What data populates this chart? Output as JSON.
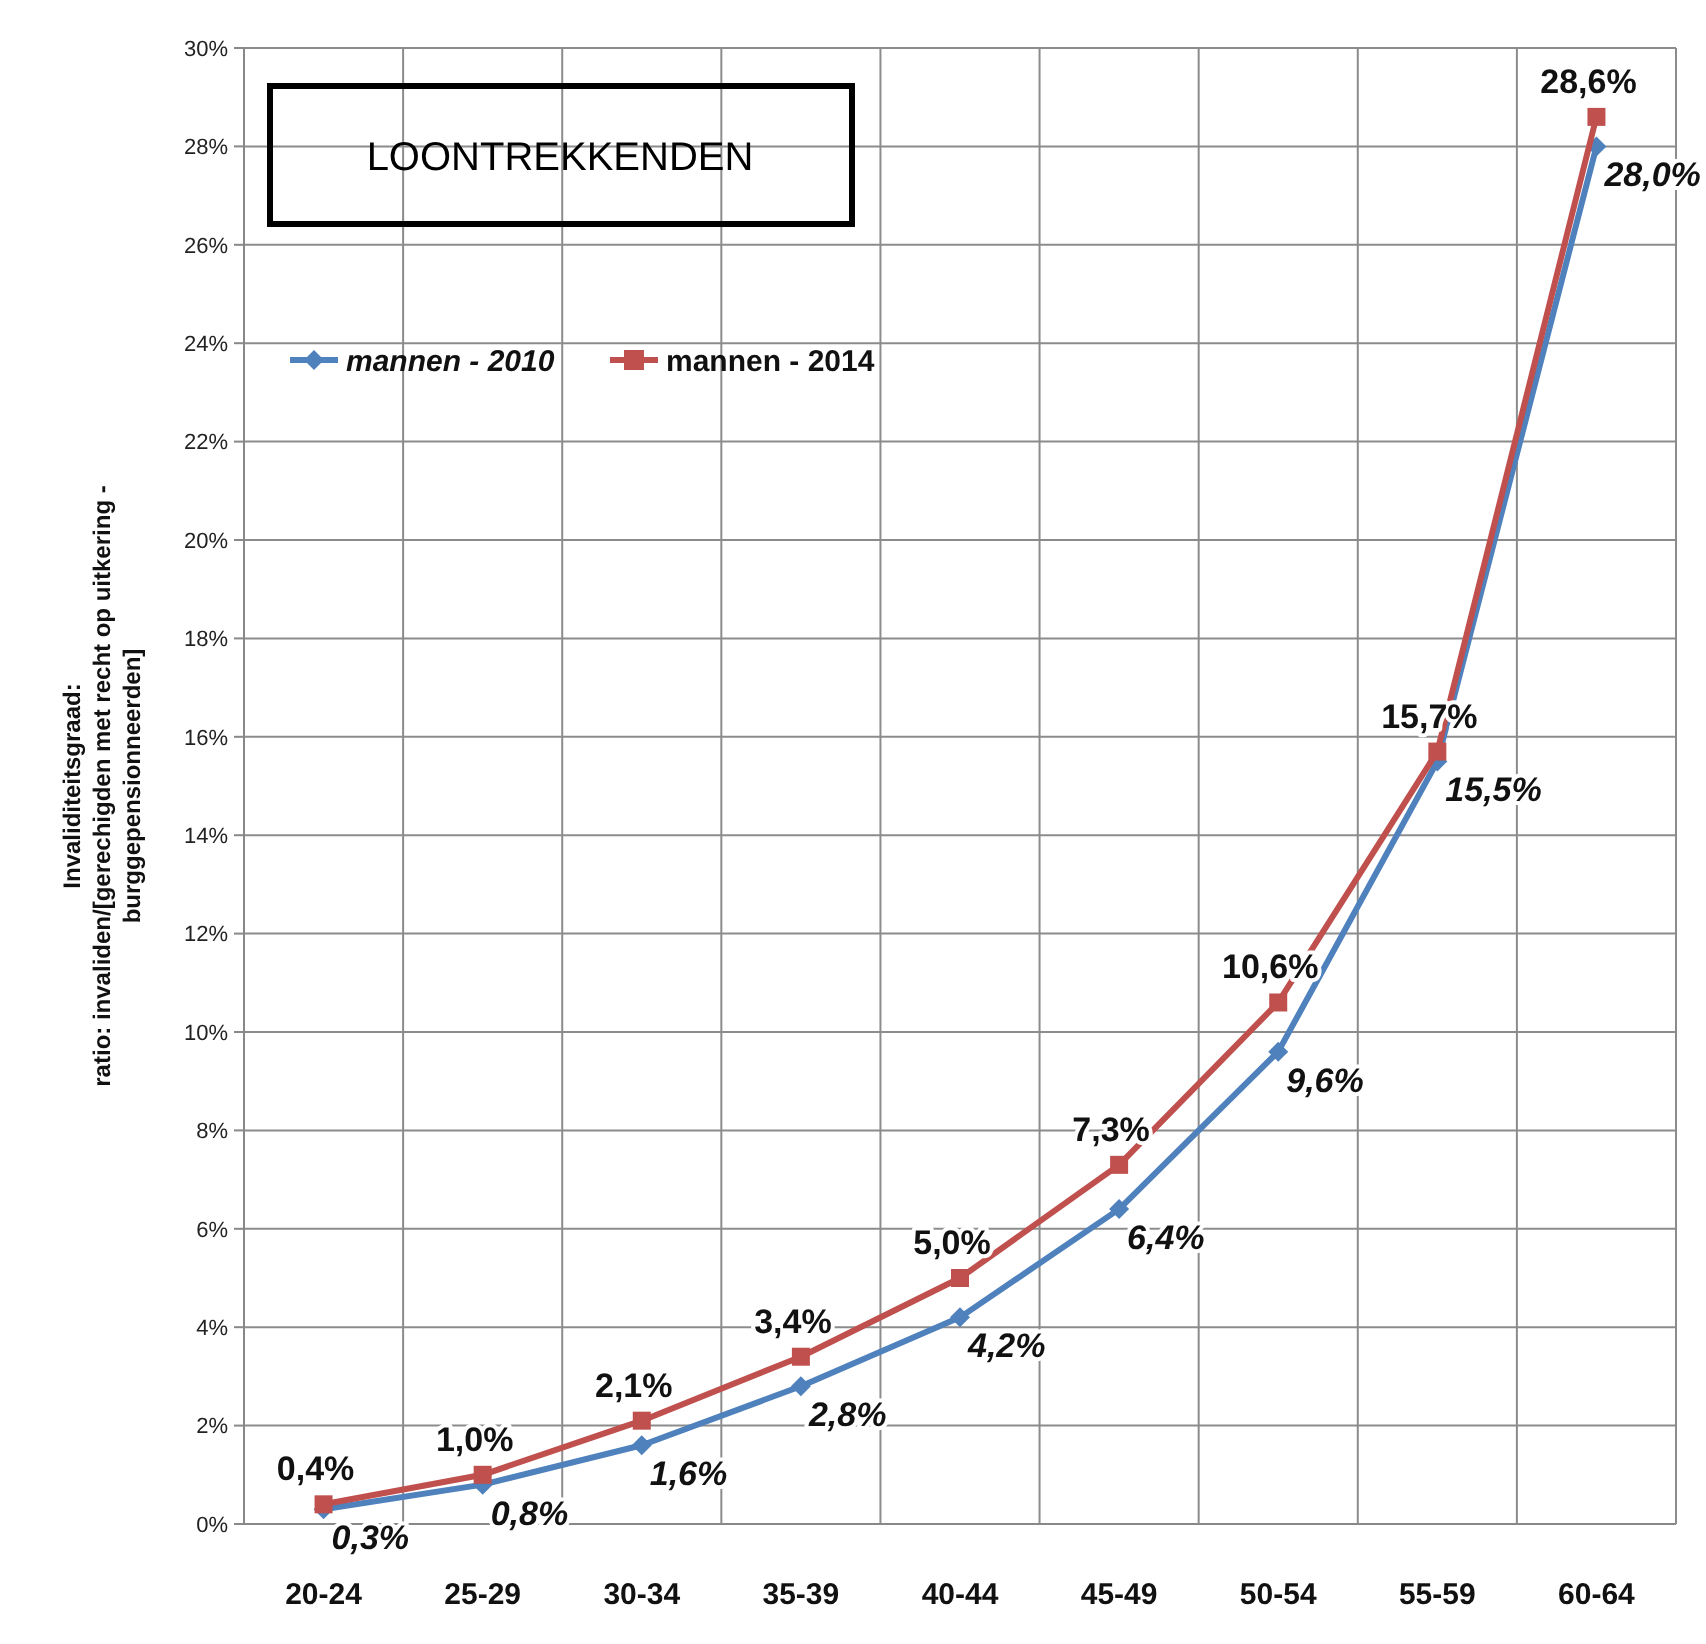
{
  "chart_data": {
    "type": "line",
    "title": "LOONTREKKENDEN",
    "ylabel": "Invaliditeitsgraad:\nratio: invaliden/[gerechigden met recht op uitkering -\nburggepensionneerden]",
    "categories": [
      "20-24",
      "25-29",
      "30-34",
      "35-39",
      "40-44",
      "45-49",
      "50-54",
      "55-59",
      "60-64"
    ],
    "series": [
      {
        "name": "mannen - 2010",
        "color": "#4f81bd",
        "marker": "diamond",
        "values": [
          0.3,
          0.8,
          1.6,
          2.8,
          4.2,
          6.4,
          9.6,
          15.5,
          28.0
        ],
        "value_labels": [
          "0,3%",
          "0,8%",
          "1,6%",
          "2,8%",
          "4,2%",
          "6,4%",
          "9,6%",
          "15,5%",
          "28,0%"
        ]
      },
      {
        "name": "mannen - 2014",
        "color": "#c0504d",
        "marker": "square",
        "values": [
          0.4,
          1.0,
          2.1,
          3.4,
          5.0,
          7.3,
          10.6,
          15.7,
          28.6
        ],
        "value_labels": [
          "0,4%",
          "1,0%",
          "2,1%",
          "3,4%",
          "5,0%",
          "7,3%",
          "10,6%",
          "15,7%",
          "28,6%"
        ]
      }
    ],
    "ylim": [
      0,
      30
    ],
    "yticks": [
      {
        "value": 0,
        "label": "0%"
      },
      {
        "value": 2,
        "label": "2%"
      },
      {
        "value": 4,
        "label": "4%"
      },
      {
        "value": 6,
        "label": "6%"
      },
      {
        "value": 8,
        "label": "8%"
      },
      {
        "value": 10,
        "label": "10%"
      },
      {
        "value": 12,
        "label": "12%"
      },
      {
        "value": 14,
        "label": "14%"
      },
      {
        "value": 16,
        "label": "16%"
      },
      {
        "value": 18,
        "label": "18%"
      },
      {
        "value": 20,
        "label": "20%"
      },
      {
        "value": 22,
        "label": "22%"
      },
      {
        "value": 24,
        "label": "24%"
      },
      {
        "value": 26,
        "label": "26%"
      },
      {
        "value": 28,
        "label": "28%"
      },
      {
        "value": 30,
        "label": "30%"
      }
    ],
    "grid": true,
    "legend": "top left",
    "line_style": "solid"
  }
}
